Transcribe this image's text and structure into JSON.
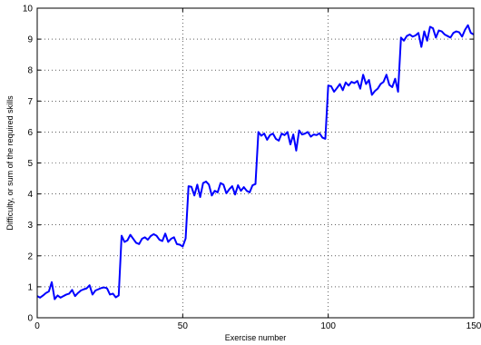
{
  "chart_data": {
    "type": "line",
    "title": "",
    "xlabel": "Exercise number",
    "ylabel": "Difficulty, or sum of the required skills",
    "xlim": [
      0,
      150
    ],
    "ylim": [
      0,
      10
    ],
    "xticks": [
      0,
      50,
      100,
      150
    ],
    "yticks": [
      0,
      1,
      2,
      3,
      4,
      5,
      6,
      7,
      8,
      9,
      10
    ],
    "grid": true,
    "grid_style": "dotted",
    "line_color": "#0000ff",
    "series": [
      {
        "values": [
          0.7,
          0.65,
          0.72,
          0.8,
          0.85,
          1.15,
          0.6,
          0.72,
          0.65,
          0.7,
          0.75,
          0.78,
          0.9,
          0.7,
          0.8,
          0.88,
          0.92,
          0.95,
          1.05,
          0.75,
          0.88,
          0.92,
          0.96,
          0.98,
          0.95,
          0.75,
          0.78,
          0.66,
          0.72,
          2.65,
          2.45,
          2.5,
          2.68,
          2.55,
          2.42,
          2.38,
          2.55,
          2.6,
          2.52,
          2.64,
          2.7,
          2.65,
          2.52,
          2.48,
          2.72,
          2.45,
          2.55,
          2.6,
          2.38,
          2.36,
          2.3,
          2.56,
          4.25,
          4.23,
          3.95,
          4.3,
          3.9,
          4.35,
          4.4,
          4.3,
          3.95,
          4.1,
          4.05,
          4.35,
          4.3,
          4.02,
          4.15,
          4.25,
          3.98,
          4.28,
          4.1,
          4.22,
          4.1,
          4.05,
          4.28,
          4.32,
          6.0,
          5.88,
          5.95,
          5.75,
          5.9,
          5.95,
          5.78,
          5.72,
          5.95,
          5.9,
          6.0,
          5.6,
          5.92,
          5.4,
          6.05,
          5.92,
          5.95,
          6.0,
          5.85,
          5.92,
          5.9,
          5.96,
          5.82,
          5.78,
          7.5,
          7.48,
          7.3,
          7.42,
          7.55,
          7.35,
          7.6,
          7.5,
          7.62,
          7.58,
          7.65,
          7.4,
          7.85,
          7.55,
          7.68,
          7.2,
          7.32,
          7.4,
          7.55,
          7.62,
          7.85,
          7.52,
          7.45,
          7.72,
          7.3,
          9.05,
          8.95,
          9.1,
          9.15,
          9.08,
          9.12,
          9.2,
          8.75,
          9.25,
          8.95,
          9.4,
          9.35,
          9.05,
          9.28,
          9.25,
          9.15,
          9.1,
          9.05,
          9.2,
          9.25,
          9.22,
          9.08,
          9.3,
          9.45,
          9.2,
          9.15
        ]
      }
    ]
  }
}
